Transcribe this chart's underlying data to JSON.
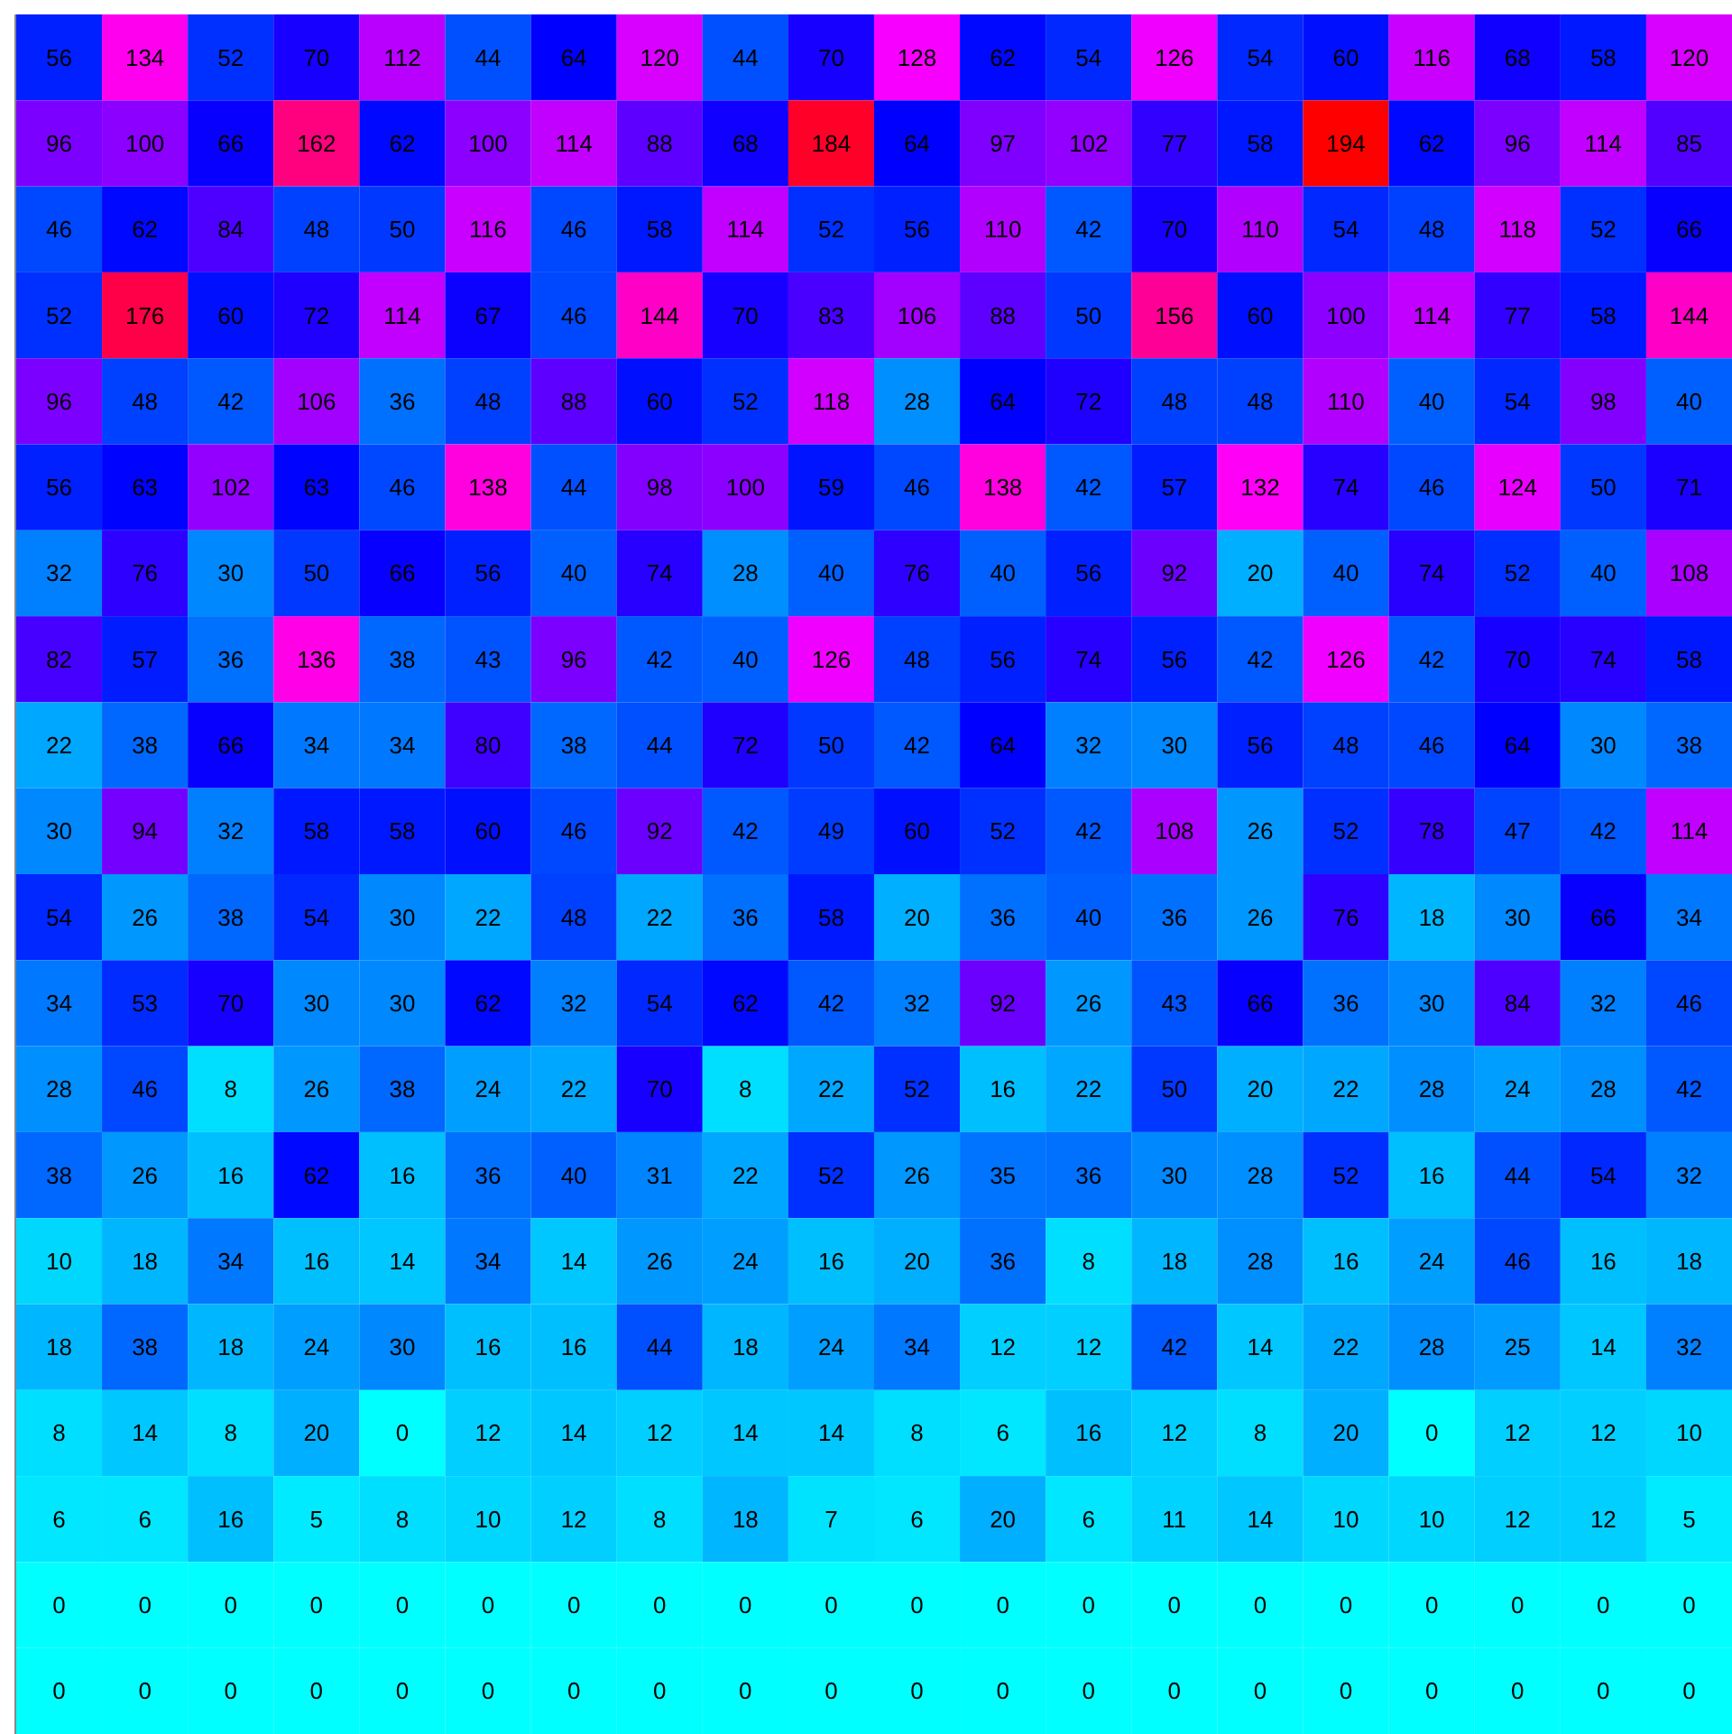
{
  "chart_data": {
    "type": "heatmap",
    "data_labels": true,
    "categories": [
      null,
      null,
      null,
      null,
      null,
      null,
      null,
      null,
      null,
      null,
      null,
      null,
      null,
      null,
      null,
      null,
      null,
      null,
      null,
      null
    ],
    "y_categories": [
      null,
      null,
      null,
      null,
      null,
      null,
      null,
      null,
      null,
      null,
      null,
      null,
      null,
      null,
      null,
      null,
      null,
      null,
      null,
      null
    ],
    "cells": [
      [
        56,
        134,
        52,
        70,
        112,
        44,
        64,
        120,
        44,
        70,
        128,
        62,
        54,
        126,
        54,
        60,
        116,
        68,
        58,
        120
      ],
      [
        96,
        100,
        66,
        162,
        62,
        100,
        114,
        88,
        68,
        184,
        64,
        97,
        102,
        77,
        58,
        194,
        62,
        96,
        114,
        85
      ],
      [
        46,
        62,
        84,
        48,
        50,
        116,
        46,
        58,
        114,
        52,
        56,
        110,
        42,
        70,
        110,
        54,
        48,
        118,
        52,
        66
      ],
      [
        52,
        176,
        60,
        72,
        114,
        67,
        46,
        144,
        70,
        83,
        106,
        88,
        50,
        156,
        60,
        100,
        114,
        77,
        58,
        144
      ],
      [
        96,
        48,
        42,
        106,
        36,
        48,
        88,
        60,
        52,
        118,
        28,
        64,
        72,
        48,
        48,
        110,
        40,
        54,
        98,
        40
      ],
      [
        56,
        63,
        102,
        63,
        46,
        138,
        44,
        98,
        100,
        59,
        46,
        138,
        42,
        57,
        132,
        74,
        46,
        124,
        50,
        71
      ],
      [
        32,
        76,
        30,
        50,
        66,
        56,
        40,
        74,
        28,
        40,
        76,
        40,
        56,
        92,
        20,
        40,
        74,
        52,
        40,
        108
      ],
      [
        82,
        57,
        36,
        136,
        38,
        43,
        96,
        42,
        40,
        126,
        48,
        56,
        74,
        56,
        42,
        126,
        42,
        70,
        74,
        58
      ],
      [
        22,
        38,
        66,
        34,
        34,
        80,
        38,
        44,
        72,
        50,
        42,
        64,
        32,
        30,
        56,
        48,
        46,
        64,
        30,
        38
      ],
      [
        30,
        94,
        32,
        58,
        58,
        60,
        46,
        92,
        42,
        49,
        60,
        52,
        42,
        108,
        26,
        52,
        78,
        47,
        42,
        114
      ],
      [
        54,
        26,
        38,
        54,
        30,
        22,
        48,
        22,
        36,
        58,
        20,
        36,
        40,
        36,
        26,
        76,
        18,
        30,
        66,
        34
      ],
      [
        34,
        53,
        70,
        30,
        30,
        62,
        32,
        54,
        62,
        42,
        32,
        92,
        26,
        43,
        66,
        36,
        30,
        84,
        32,
        46
      ],
      [
        28,
        46,
        8,
        26,
        38,
        24,
        22,
        70,
        8,
        22,
        52,
        16,
        22,
        50,
        20,
        22,
        28,
        24,
        28,
        42
      ],
      [
        38,
        26,
        16,
        62,
        16,
        36,
        40,
        31,
        22,
        52,
        26,
        35,
        36,
        30,
        28,
        52,
        16,
        44,
        54,
        32
      ],
      [
        10,
        18,
        34,
        16,
        14,
        34,
        14,
        26,
        24,
        16,
        20,
        36,
        8,
        18,
        28,
        16,
        24,
        46,
        16,
        18
      ],
      [
        18,
        38,
        18,
        24,
        30,
        16,
        16,
        44,
        18,
        24,
        34,
        12,
        12,
        42,
        14,
        22,
        28,
        25,
        14,
        32
      ],
      [
        8,
        14,
        8,
        20,
        0,
        12,
        14,
        12,
        14,
        14,
        8,
        6,
        16,
        12,
        8,
        20,
        0,
        12,
        12,
        10
      ],
      [
        6,
        6,
        16,
        5,
        8,
        10,
        12,
        8,
        18,
        7,
        6,
        20,
        6,
        11,
        14,
        10,
        10,
        12,
        12,
        5
      ],
      [
        0,
        0,
        0,
        0,
        0,
        0,
        0,
        0,
        0,
        0,
        0,
        0,
        0,
        0,
        0,
        0,
        0,
        0,
        0,
        0
      ],
      [
        0,
        0,
        0,
        0,
        0,
        0,
        0,
        0,
        0,
        0,
        0,
        0,
        0,
        0,
        0,
        0,
        0,
        0,
        0,
        0
      ]
    ]
  }
}
